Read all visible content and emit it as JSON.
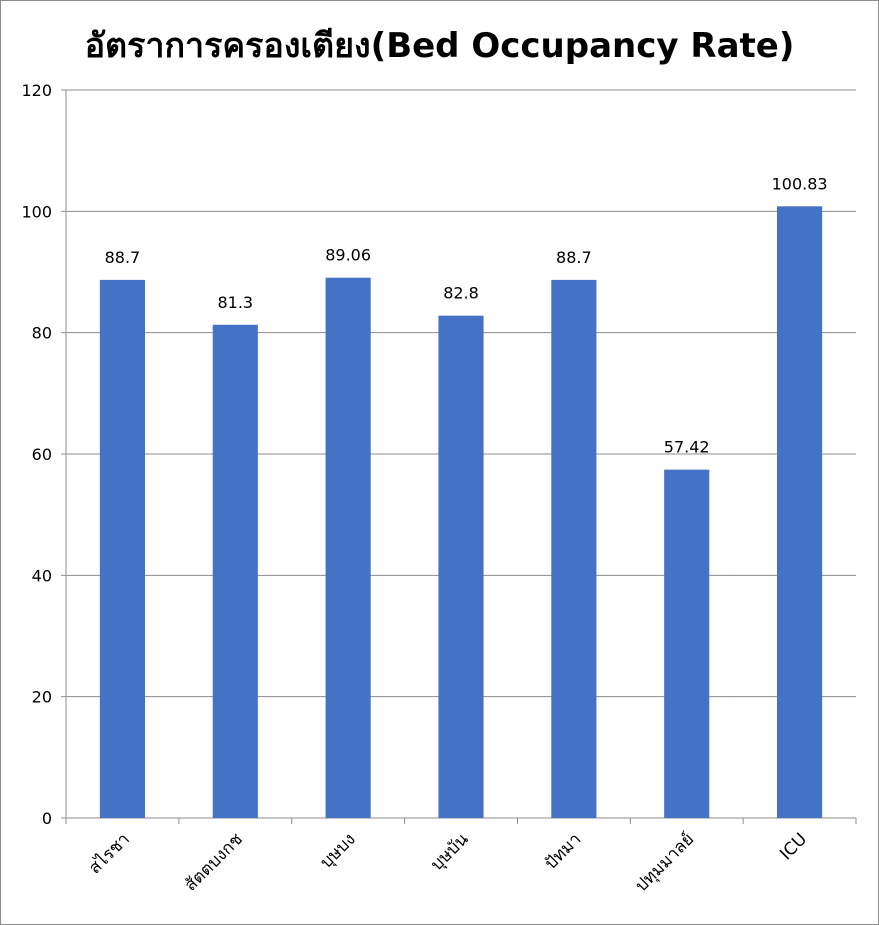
{
  "chart_data": {
    "type": "bar",
    "title": "อัตราการครองเตียง(Bed Occupancy Rate)",
    "categories": [
      "สไรชา",
      "สัตตบงกช",
      "บุษบง",
      "บุษบัน",
      "ปัทมา",
      "ปทุมมาลย์",
      "ICU"
    ],
    "values": [
      88.7,
      81.3,
      89.06,
      82.8,
      88.7,
      57.42,
      100.83
    ],
    "value_labels": [
      "88.7",
      "81.3",
      "89.06",
      "82.8",
      "88.7",
      "57.42",
      "100.83"
    ],
    "ylim": [
      0,
      120
    ],
    "yticks": [
      "0",
      "20",
      "40",
      "60",
      "80",
      "100",
      "120"
    ],
    "ytick_values": [
      0,
      20,
      40,
      60,
      80,
      100,
      120
    ],
    "bar_color": "#4472c4",
    "grid": true,
    "legend": "none"
  }
}
